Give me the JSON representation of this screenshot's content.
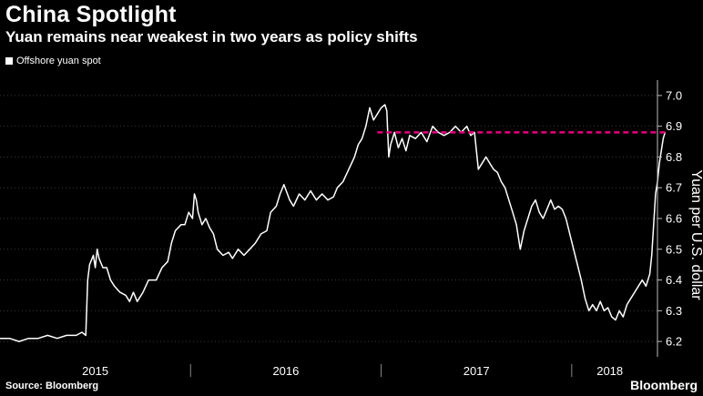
{
  "header": {
    "title": "China Spotlight",
    "subtitle": "Yuan remains near weakest in two years as policy shifts"
  },
  "legend": {
    "label": "Offshore yuan spot",
    "color": "#ffffff"
  },
  "footer": {
    "source": "Source: Bloomberg",
    "brand": "Bloomberg"
  },
  "chart_data": {
    "type": "line",
    "title": "China Spotlight",
    "subtitle": "Yuan remains near weakest in two years as policy shifts",
    "xlabel": "",
    "ylabel": "Yuan per U.S. dollar",
    "ylim": [
      6.15,
      7.05
    ],
    "yticks": [
      6.2,
      6.3,
      6.4,
      6.5,
      6.6,
      6.7,
      6.8,
      6.9,
      7.0
    ],
    "ytick_labels": [
      "6.2",
      "6.3",
      "6.4",
      "6.5",
      "6.6",
      "6.7",
      "6.8",
      "6.9",
      "7.0"
    ],
    "xlim": [
      2015.0,
      2018.45
    ],
    "xticks": [
      {
        "label": "2015",
        "x": 2015.5
      },
      {
        "label": "2016",
        "x": 2016.5
      },
      {
        "label": "2017",
        "x": 2017.5
      },
      {
        "label": "2018",
        "x": 2018.2
      }
    ],
    "year_dividers": [
      2016.0,
      2017.0,
      2018.0
    ],
    "grid": true,
    "legend_position": "top-left",
    "reference_line": {
      "value": 6.88,
      "from_x": 2016.98,
      "color": "#e6007e",
      "style": "dashed"
    },
    "series": [
      {
        "name": "Offshore yuan spot",
        "color": "#ffffff",
        "points": [
          [
            2015.0,
            6.21
          ],
          [
            2015.05,
            6.21
          ],
          [
            2015.1,
            6.2
          ],
          [
            2015.15,
            6.21
          ],
          [
            2015.2,
            6.21
          ],
          [
            2015.25,
            6.22
          ],
          [
            2015.3,
            6.21
          ],
          [
            2015.35,
            6.22
          ],
          [
            2015.4,
            6.22
          ],
          [
            2015.43,
            6.23
          ],
          [
            2015.45,
            6.22
          ],
          [
            2015.46,
            6.4
          ],
          [
            2015.47,
            6.45
          ],
          [
            2015.49,
            6.48
          ],
          [
            2015.5,
            6.44
          ],
          [
            2015.51,
            6.5
          ],
          [
            2015.52,
            6.47
          ],
          [
            2015.54,
            6.44
          ],
          [
            2015.56,
            6.44
          ],
          [
            2015.58,
            6.4
          ],
          [
            2015.6,
            6.38
          ],
          [
            2015.63,
            6.36
          ],
          [
            2015.66,
            6.35
          ],
          [
            2015.68,
            6.33
          ],
          [
            2015.7,
            6.36
          ],
          [
            2015.72,
            6.33
          ],
          [
            2015.75,
            6.36
          ],
          [
            2015.78,
            6.4
          ],
          [
            2015.82,
            6.4
          ],
          [
            2015.85,
            6.44
          ],
          [
            2015.88,
            6.46
          ],
          [
            2015.9,
            6.52
          ],
          [
            2015.92,
            6.56
          ],
          [
            2015.95,
            6.58
          ],
          [
            2015.97,
            6.58
          ],
          [
            2015.99,
            6.62
          ],
          [
            2016.01,
            6.6
          ],
          [
            2016.02,
            6.68
          ],
          [
            2016.03,
            6.66
          ],
          [
            2016.04,
            6.62
          ],
          [
            2016.06,
            6.58
          ],
          [
            2016.08,
            6.6
          ],
          [
            2016.1,
            6.57
          ],
          [
            2016.12,
            6.55
          ],
          [
            2016.14,
            6.5
          ],
          [
            2016.17,
            6.48
          ],
          [
            2016.2,
            6.49
          ],
          [
            2016.22,
            6.47
          ],
          [
            2016.25,
            6.5
          ],
          [
            2016.28,
            6.48
          ],
          [
            2016.31,
            6.5
          ],
          [
            2016.34,
            6.52
          ],
          [
            2016.37,
            6.55
          ],
          [
            2016.4,
            6.56
          ],
          [
            2016.42,
            6.62
          ],
          [
            2016.45,
            6.64
          ],
          [
            2016.47,
            6.68
          ],
          [
            2016.49,
            6.71
          ],
          [
            2016.52,
            6.66
          ],
          [
            2016.54,
            6.64
          ],
          [
            2016.57,
            6.68
          ],
          [
            2016.6,
            6.66
          ],
          [
            2016.63,
            6.69
          ],
          [
            2016.66,
            6.66
          ],
          [
            2016.69,
            6.68
          ],
          [
            2016.72,
            6.66
          ],
          [
            2016.75,
            6.67
          ],
          [
            2016.77,
            6.7
          ],
          [
            2016.8,
            6.72
          ],
          [
            2016.83,
            6.76
          ],
          [
            2016.86,
            6.8
          ],
          [
            2016.88,
            6.84
          ],
          [
            2016.9,
            6.86
          ],
          [
            2016.92,
            6.9
          ],
          [
            2016.94,
            6.96
          ],
          [
            2016.96,
            6.92
          ],
          [
            2016.98,
            6.94
          ],
          [
            2017.0,
            6.96
          ],
          [
            2017.02,
            6.97
          ],
          [
            2017.03,
            6.95
          ],
          [
            2017.04,
            6.8
          ],
          [
            2017.05,
            6.84
          ],
          [
            2017.07,
            6.88
          ],
          [
            2017.09,
            6.83
          ],
          [
            2017.11,
            6.86
          ],
          [
            2017.13,
            6.82
          ],
          [
            2017.15,
            6.87
          ],
          [
            2017.18,
            6.86
          ],
          [
            2017.21,
            6.88
          ],
          [
            2017.24,
            6.85
          ],
          [
            2017.27,
            6.9
          ],
          [
            2017.3,
            6.88
          ],
          [
            2017.33,
            6.87
          ],
          [
            2017.36,
            6.88
          ],
          [
            2017.39,
            6.9
          ],
          [
            2017.42,
            6.88
          ],
          [
            2017.45,
            6.9
          ],
          [
            2017.47,
            6.87
          ],
          [
            2017.49,
            6.88
          ],
          [
            2017.51,
            6.76
          ],
          [
            2017.53,
            6.78
          ],
          [
            2017.55,
            6.8
          ],
          [
            2017.57,
            6.78
          ],
          [
            2017.59,
            6.76
          ],
          [
            2017.61,
            6.75
          ],
          [
            2017.63,
            6.72
          ],
          [
            2017.65,
            6.7
          ],
          [
            2017.67,
            6.66
          ],
          [
            2017.69,
            6.62
          ],
          [
            2017.71,
            6.58
          ],
          [
            2017.72,
            6.54
          ],
          [
            2017.73,
            6.5
          ],
          [
            2017.75,
            6.56
          ],
          [
            2017.77,
            6.6
          ],
          [
            2017.79,
            6.64
          ],
          [
            2017.81,
            6.66
          ],
          [
            2017.83,
            6.62
          ],
          [
            2017.85,
            6.6
          ],
          [
            2017.87,
            6.63
          ],
          [
            2017.89,
            6.66
          ],
          [
            2017.91,
            6.63
          ],
          [
            2017.93,
            6.64
          ],
          [
            2017.95,
            6.63
          ],
          [
            2017.97,
            6.6
          ],
          [
            2017.99,
            6.55
          ],
          [
            2018.01,
            6.5
          ],
          [
            2018.03,
            6.45
          ],
          [
            2018.05,
            6.4
          ],
          [
            2018.07,
            6.34
          ],
          [
            2018.09,
            6.3
          ],
          [
            2018.11,
            6.32
          ],
          [
            2018.13,
            6.3
          ],
          [
            2018.15,
            6.33
          ],
          [
            2018.17,
            6.3
          ],
          [
            2018.19,
            6.31
          ],
          [
            2018.21,
            6.28
          ],
          [
            2018.23,
            6.27
          ],
          [
            2018.25,
            6.3
          ],
          [
            2018.27,
            6.28
          ],
          [
            2018.29,
            6.32
          ],
          [
            2018.31,
            6.34
          ],
          [
            2018.33,
            6.36
          ],
          [
            2018.35,
            6.38
          ],
          [
            2018.37,
            6.4
          ],
          [
            2018.39,
            6.38
          ],
          [
            2018.41,
            6.42
          ],
          [
            2018.42,
            6.48
          ],
          [
            2018.43,
            6.58
          ],
          [
            2018.44,
            6.68
          ],
          [
            2018.45,
            6.72
          ],
          [
            2018.46,
            6.78
          ],
          [
            2018.47,
            6.82
          ],
          [
            2018.48,
            6.86
          ],
          [
            2018.49,
            6.88
          ]
        ]
      }
    ]
  }
}
